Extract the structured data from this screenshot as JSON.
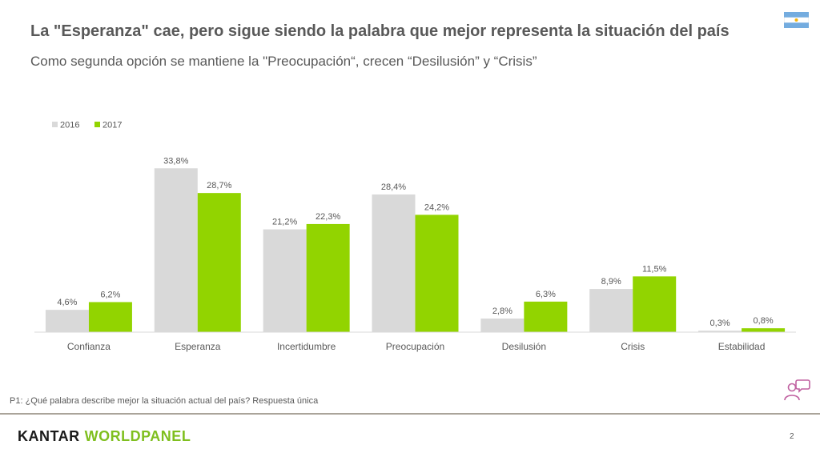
{
  "title": "La \"Esperanza\" cae, pero sigue siendo la palabra que mejor representa la situación del país",
  "subtitle": "Como segunda opción se mantiene la \"Preocupación“, crecen “Desilusión” y “Crisis”",
  "footnote": "P1: ¿Qué palabra describe mejor la situación actual del país? Respuesta única",
  "logo": {
    "part1": "KANTAR",
    "part2": "WORLDPANEL"
  },
  "page_number": "2",
  "icons": {
    "flag": "argentina-flag-icon",
    "people": "people-chat-icon"
  },
  "colors": {
    "series_2016": "#d9d9d9",
    "series_2017": "#92d400",
    "text": "#595959",
    "logo_accent": "#7fbf1f"
  },
  "chart_data": {
    "type": "bar",
    "categories": [
      "Confianza",
      "Esperanza",
      "Incertidumbre",
      "Preocupación",
      "Desilusión",
      "Crisis",
      "Estabilidad"
    ],
    "series": [
      {
        "name": "2016",
        "values": [
          4.6,
          33.8,
          21.2,
          28.4,
          2.8,
          8.9,
          0.3
        ],
        "labels": [
          "4,6%",
          "33,8%",
          "21,2%",
          "28,4%",
          "2,8%",
          "8,9%",
          "0,3%"
        ],
        "color": "#d9d9d9"
      },
      {
        "name": "2017",
        "values": [
          6.2,
          28.7,
          22.3,
          24.2,
          6.3,
          11.5,
          0.8
        ],
        "labels": [
          "6,2%",
          "28,7%",
          "22,3%",
          "24,2%",
          "6,3%",
          "11,5%",
          "0,8%"
        ],
        "color": "#92d400"
      }
    ],
    "ylim": [
      0,
      35
    ],
    "legend_position": "top-left",
    "grid": false
  }
}
